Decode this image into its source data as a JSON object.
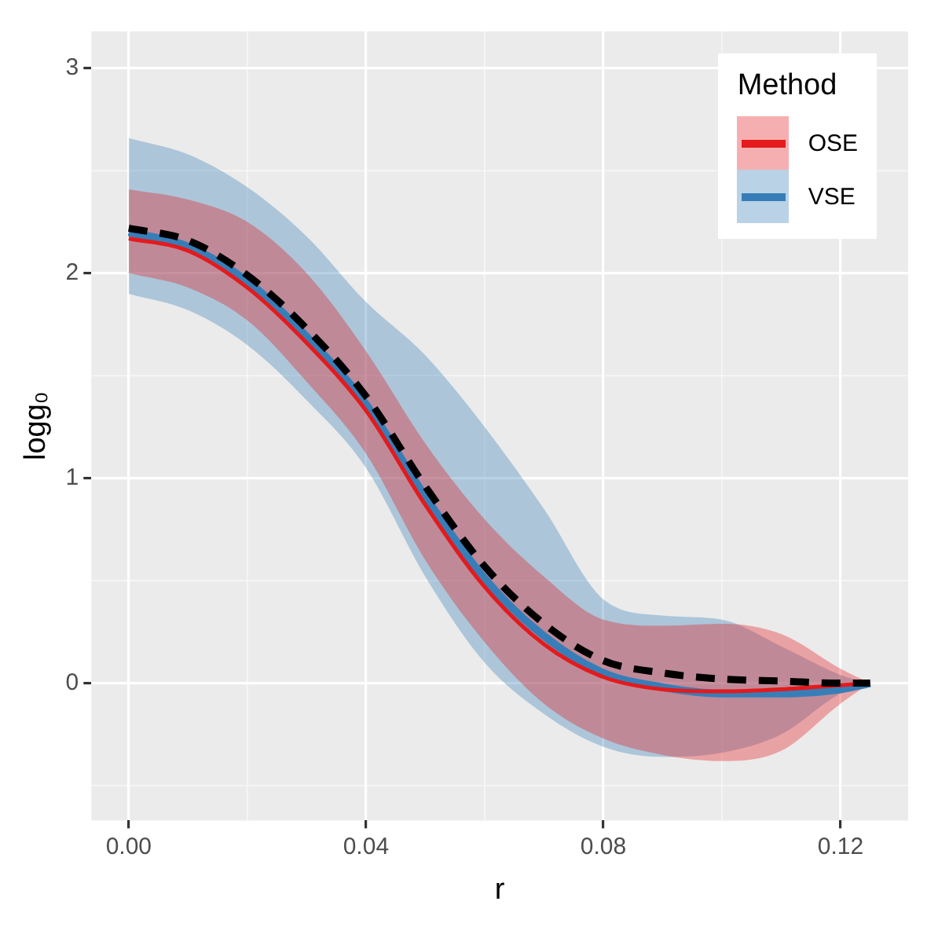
{
  "chart_data": {
    "type": "line",
    "xlabel": "r",
    "ylabel": "logg₀",
    "legend_title": "Method",
    "legend": "top right",
    "grid": true,
    "marker": "none",
    "x": [
      0,
      0.01,
      0.02,
      0.03,
      0.04,
      0.05,
      0.06,
      0.07,
      0.08,
      0.09,
      0.1,
      0.11,
      0.12,
      0.125
    ],
    "xlim": [
      -0.0063,
      0.1314
    ],
    "xticks": [
      {
        "value": 0,
        "label": "0.00"
      },
      {
        "value": 0.04,
        "label": "0.04"
      },
      {
        "value": 0.08,
        "label": "0.08"
      },
      {
        "value": 0.12,
        "label": "0.12"
      }
    ],
    "ylim": [
      -0.67,
      3.18
    ],
    "yticks": [
      0,
      1,
      2,
      3
    ],
    "series": [
      {
        "name": "VSE",
        "color": "#377eb8",
        "values": [
          2.2,
          2.13,
          1.96,
          1.69,
          1.36,
          0.91,
          0.51,
          0.23,
          0.05,
          -0.02,
          -0.05,
          -0.05,
          -0.03,
          0
        ],
        "upper": [
          2.66,
          2.58,
          2.42,
          2.18,
          1.86,
          1.6,
          1.25,
          0.85,
          0.41,
          0.33,
          0.31,
          0.18,
          0.04,
          0
        ],
        "lower": [
          1.9,
          1.82,
          1.65,
          1.38,
          1.05,
          0.52,
          0.1,
          -0.15,
          -0.31,
          -0.36,
          -0.34,
          -0.25,
          -0.05,
          0
        ]
      },
      {
        "name": "OSE",
        "color": "#e41a1c",
        "values": [
          2.17,
          2.11,
          1.93,
          1.66,
          1.33,
          0.87,
          0.47,
          0.19,
          0.03,
          -0.03,
          -0.04,
          -0.03,
          -0.01,
          0
        ],
        "upper": [
          2.41,
          2.36,
          2.25,
          2.0,
          1.62,
          1.17,
          0.8,
          0.52,
          0.31,
          0.28,
          0.29,
          0.24,
          0.07,
          0
        ],
        "lower": [
          2.0,
          1.93,
          1.77,
          1.47,
          1.12,
          0.6,
          0.2,
          -0.1,
          -0.27,
          -0.35,
          -0.38,
          -0.33,
          -0.1,
          0
        ]
      },
      {
        "color": "#000000",
        "line_style": "dashed",
        "values": [
          2.22,
          2.16,
          1.99,
          1.73,
          1.4,
          0.96,
          0.57,
          0.29,
          0.11,
          0.05,
          0.02,
          0.01,
          0.0,
          0
        ]
      }
    ]
  }
}
